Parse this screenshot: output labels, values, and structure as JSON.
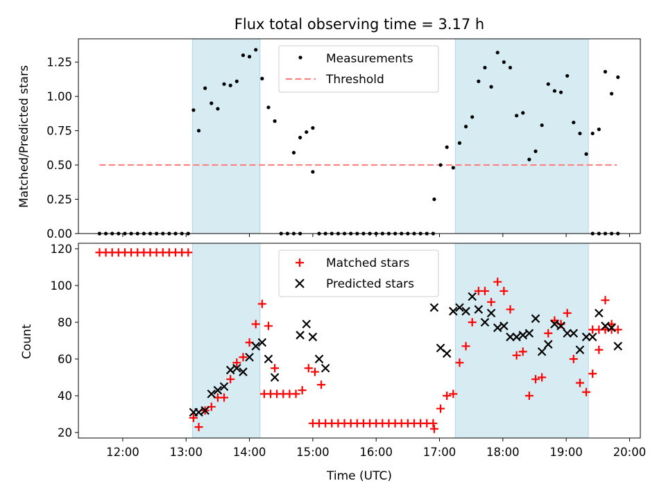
{
  "figure": {
    "title": "Flux total observing time = 3.17 h"
  },
  "chart_data": [
    {
      "type": "scatter",
      "ylabel": "Matched/Predicted stars",
      "xlabel": "",
      "xlim_hours": [
        11.3,
        20.17
      ],
      "ylim": [
        0,
        1.42
      ],
      "yticks": [
        "0.00",
        "0.25",
        "0.50",
        "0.75",
        "1.00",
        "1.25"
      ],
      "ytick_values": [
        0,
        0.25,
        0.5,
        0.75,
        1.0,
        1.25
      ],
      "shaded_windows": [
        [
          "13:06",
          "14:10"
        ],
        [
          "17:15",
          "19:21"
        ]
      ],
      "legend": {
        "placement": "top-center",
        "entries": [
          "Measurements",
          "Threshold"
        ]
      },
      "threshold": {
        "name": "Threshold",
        "y": 0.5,
        "x_range": [
          "11:38",
          "19:48"
        ],
        "color": "#ff8080",
        "style": "dashed"
      },
      "series": [
        {
          "name": "Measurements",
          "color": "#000000",
          "marker": "dot",
          "points": [
            [
              "11:38",
              0
            ],
            [
              "11:44",
              0
            ],
            [
              "11:50",
              0
            ],
            [
              "11:56",
              0
            ],
            [
              "12:02",
              0
            ],
            [
              "12:08",
              0
            ],
            [
              "12:14",
              0
            ],
            [
              "12:20",
              0
            ],
            [
              "12:26",
              0
            ],
            [
              "12:32",
              0
            ],
            [
              "12:38",
              0
            ],
            [
              "12:44",
              0
            ],
            [
              "12:50",
              0
            ],
            [
              "12:56",
              0
            ],
            [
              "13:02",
              0
            ],
            [
              "13:07",
              0.9
            ],
            [
              "13:12",
              0.75
            ],
            [
              "13:18",
              1.06
            ],
            [
              "13:24",
              0.95
            ],
            [
              "13:30",
              0.91
            ],
            [
              "13:36",
              1.09
            ],
            [
              "13:42",
              1.08
            ],
            [
              "13:48",
              1.11
            ],
            [
              "13:54",
              1.3
            ],
            [
              "14:00",
              1.29
            ],
            [
              "14:06",
              1.34
            ],
            [
              "14:12",
              1.13
            ],
            [
              "14:18",
              0.92
            ],
            [
              "14:24",
              0.82
            ],
            [
              "14:30",
              0
            ],
            [
              "14:36",
              0
            ],
            [
              "14:42",
              0
            ],
            [
              "14:48",
              0
            ],
            [
              "14:42",
              0.59
            ],
            [
              "14:48",
              0.7
            ],
            [
              "14:54",
              0.74
            ],
            [
              "15:00",
              0.77
            ],
            [
              "15:00",
              0.45
            ],
            [
              "15:06",
              0
            ],
            [
              "15:12",
              0
            ],
            [
              "15:18",
              0
            ],
            [
              "15:24",
              0
            ],
            [
              "15:30",
              0
            ],
            [
              "15:36",
              0
            ],
            [
              "15:42",
              0
            ],
            [
              "15:48",
              0
            ],
            [
              "15:54",
              0
            ],
            [
              "16:00",
              0
            ],
            [
              "16:06",
              0
            ],
            [
              "16:12",
              0
            ],
            [
              "16:18",
              0
            ],
            [
              "16:24",
              0
            ],
            [
              "16:30",
              0
            ],
            [
              "16:36",
              0
            ],
            [
              "16:42",
              0
            ],
            [
              "16:48",
              0
            ],
            [
              "16:54",
              0
            ],
            [
              "16:55",
              0.25
            ],
            [
              "17:01",
              0.5
            ],
            [
              "17:07",
              0.63
            ],
            [
              "17:13",
              0.48
            ],
            [
              "17:19",
              0.66
            ],
            [
              "17:25",
              0.78
            ],
            [
              "17:31",
              0.85
            ],
            [
              "17:37",
              1.11
            ],
            [
              "17:43",
              1.21
            ],
            [
              "17:49",
              1.07
            ],
            [
              "17:55",
              1.32
            ],
            [
              "18:01",
              1.25
            ],
            [
              "18:07",
              1.21
            ],
            [
              "18:13",
              0.86
            ],
            [
              "18:19",
              0.88
            ],
            [
              "18:25",
              0.54
            ],
            [
              "18:31",
              0.6
            ],
            [
              "18:37",
              0.79
            ],
            [
              "18:43",
              1.09
            ],
            [
              "18:49",
              1.04
            ],
            [
              "18:55",
              1.03
            ],
            [
              "19:01",
              1.15
            ],
            [
              "19:07",
              0.81
            ],
            [
              "19:13",
              0.73
            ],
            [
              "19:19",
              0.58
            ],
            [
              "19:25",
              0.73
            ],
            [
              "19:31",
              0.76
            ],
            [
              "19:37",
              1.18
            ],
            [
              "19:43",
              1.02
            ],
            [
              "19:49",
              1.14
            ],
            [
              "19:25",
              0
            ],
            [
              "19:31",
              0
            ],
            [
              "19:37",
              0
            ],
            [
              "19:43",
              0
            ],
            [
              "19:49",
              0
            ]
          ]
        }
      ]
    },
    {
      "type": "scatter",
      "ylabel": "Count",
      "xlabel": "Time (UTC)",
      "xlim_hours": [
        11.3,
        20.17
      ],
      "ylim": [
        17,
        123
      ],
      "yticks": [
        "20",
        "40",
        "60",
        "80",
        "100",
        "120"
      ],
      "ytick_values": [
        20,
        40,
        60,
        80,
        100,
        120
      ],
      "xticks": [
        "12:00",
        "13:00",
        "14:00",
        "15:00",
        "16:00",
        "17:00",
        "18:00",
        "19:00",
        "20:00"
      ],
      "shaded_windows": [
        [
          "13:06",
          "14:10"
        ],
        [
          "17:15",
          "19:21"
        ]
      ],
      "legend": {
        "placement": "top-center",
        "entries": [
          "Matched stars",
          "Predicted stars"
        ]
      },
      "series": [
        {
          "name": "Matched stars",
          "color": "#ff0000",
          "marker": "plus",
          "points": [
            [
              "11:38",
              118
            ],
            [
              "11:44",
              118
            ],
            [
              "11:50",
              118
            ],
            [
              "11:56",
              118
            ],
            [
              "12:02",
              118
            ],
            [
              "12:08",
              118
            ],
            [
              "12:14",
              118
            ],
            [
              "12:20",
              118
            ],
            [
              "12:26",
              118
            ],
            [
              "12:32",
              118
            ],
            [
              "12:38",
              118
            ],
            [
              "12:44",
              118
            ],
            [
              "12:50",
              118
            ],
            [
              "12:56",
              118
            ],
            [
              "13:02",
              118
            ],
            [
              "13:07",
              28
            ],
            [
              "13:12",
              23
            ],
            [
              "13:18",
              32
            ],
            [
              "13:24",
              34
            ],
            [
              "13:30",
              39
            ],
            [
              "13:36",
              39
            ],
            [
              "13:42",
              49
            ],
            [
              "13:48",
              58
            ],
            [
              "13:54",
              61
            ],
            [
              "14:00",
              69
            ],
            [
              "14:06",
              79
            ],
            [
              "14:12",
              90
            ],
            [
              "14:18",
              78
            ],
            [
              "14:24",
              55
            ],
            [
              "14:14",
              41
            ],
            [
              "14:20",
              41
            ],
            [
              "14:26",
              41
            ],
            [
              "14:32",
              41
            ],
            [
              "14:38",
              41
            ],
            [
              "14:44",
              41
            ],
            [
              "14:50",
              43
            ],
            [
              "14:56",
              55
            ],
            [
              "15:02",
              53
            ],
            [
              "15:08",
              46
            ],
            [
              "15:00",
              25
            ],
            [
              "15:06",
              25
            ],
            [
              "15:12",
              25
            ],
            [
              "15:18",
              25
            ],
            [
              "15:24",
              25
            ],
            [
              "15:30",
              25
            ],
            [
              "15:36",
              25
            ],
            [
              "15:42",
              25
            ],
            [
              "15:48",
              25
            ],
            [
              "15:54",
              25
            ],
            [
              "16:00",
              25
            ],
            [
              "16:06",
              25
            ],
            [
              "16:12",
              25
            ],
            [
              "16:18",
              25
            ],
            [
              "16:24",
              25
            ],
            [
              "16:30",
              25
            ],
            [
              "16:36",
              25
            ],
            [
              "16:42",
              25
            ],
            [
              "16:48",
              25
            ],
            [
              "16:54",
              25
            ],
            [
              "16:55",
              22
            ],
            [
              "17:01",
              33
            ],
            [
              "17:07",
              40
            ],
            [
              "17:13",
              41
            ],
            [
              "17:19",
              58
            ],
            [
              "17:25",
              67
            ],
            [
              "17:31",
              80
            ],
            [
              "17:37",
              97
            ],
            [
              "17:43",
              97
            ],
            [
              "17:49",
              91
            ],
            [
              "17:55",
              102
            ],
            [
              "18:01",
              97
            ],
            [
              "18:07",
              87
            ],
            [
              "18:13",
              62
            ],
            [
              "18:19",
              64
            ],
            [
              "18:25",
              40
            ],
            [
              "18:31",
              49
            ],
            [
              "18:37",
              50
            ],
            [
              "18:43",
              74
            ],
            [
              "18:49",
              81
            ],
            [
              "18:55",
              79
            ],
            [
              "19:01",
              85
            ],
            [
              "19:07",
              60
            ],
            [
              "19:13",
              47
            ],
            [
              "19:19",
              42
            ],
            [
              "19:25",
              52
            ],
            [
              "19:31",
              65
            ],
            [
              "19:37",
              92
            ],
            [
              "19:43",
              79
            ],
            [
              "19:25",
              76
            ],
            [
              "19:31",
              76
            ],
            [
              "19:37",
              76
            ],
            [
              "19:43",
              76
            ],
            [
              "19:49",
              76
            ]
          ]
        },
        {
          "name": "Predicted stars",
          "color": "#000000",
          "marker": "x",
          "points": [
            [
              "13:07",
              31
            ],
            [
              "13:12",
              31
            ],
            [
              "13:18",
              32
            ],
            [
              "13:24",
              41
            ],
            [
              "13:30",
              43
            ],
            [
              "13:36",
              45
            ],
            [
              "13:42",
              54
            ],
            [
              "13:48",
              55
            ],
            [
              "13:54",
              53
            ],
            [
              "14:00",
              61
            ],
            [
              "14:06",
              67
            ],
            [
              "14:12",
              69
            ],
            [
              "14:18",
              60
            ],
            [
              "14:24",
              50
            ],
            [
              "14:48",
              73
            ],
            [
              "14:54",
              79
            ],
            [
              "15:00",
              72
            ],
            [
              "15:06",
              60
            ],
            [
              "15:12",
              55
            ],
            [
              "16:55",
              88
            ],
            [
              "17:01",
              66
            ],
            [
              "17:07",
              63
            ],
            [
              "17:13",
              86
            ],
            [
              "17:19",
              88
            ],
            [
              "17:25",
              86
            ],
            [
              "17:31",
              94
            ],
            [
              "17:37",
              87
            ],
            [
              "17:43",
              80
            ],
            [
              "17:49",
              85
            ],
            [
              "17:55",
              77
            ],
            [
              "18:01",
              78
            ],
            [
              "18:07",
              72
            ],
            [
              "18:13",
              72
            ],
            [
              "18:19",
              73
            ],
            [
              "18:25",
              74
            ],
            [
              "18:31",
              82
            ],
            [
              "18:37",
              64
            ],
            [
              "18:43",
              68
            ],
            [
              "18:49",
              79
            ],
            [
              "18:55",
              78
            ],
            [
              "19:01",
              74
            ],
            [
              "19:07",
              74
            ],
            [
              "19:13",
              65
            ],
            [
              "19:19",
              72
            ],
            [
              "19:25",
              72
            ],
            [
              "19:31",
              85
            ],
            [
              "19:37",
              78
            ],
            [
              "19:43",
              77
            ],
            [
              "19:49",
              67
            ]
          ]
        }
      ]
    }
  ]
}
